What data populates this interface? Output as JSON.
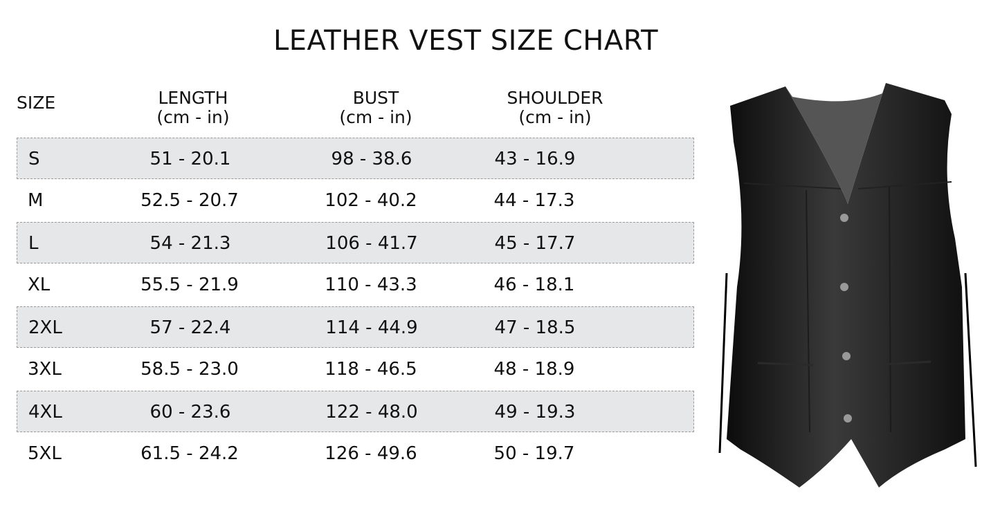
{
  "title": "LEATHER VEST SIZE CHART",
  "headers": [
    {
      "label": "SIZE",
      "unit": ""
    },
    {
      "label": "LENGTH",
      "unit": "(cm - in)"
    },
    {
      "label": "BUST",
      "unit": "(cm - in)"
    },
    {
      "label": "SHOULDER",
      "unit": "(cm - in)"
    }
  ],
  "rows": [
    {
      "size": "S",
      "length": "51 - 20.1",
      "bust": "98 - 38.6",
      "shoulder": "43 - 16.9"
    },
    {
      "size": "M",
      "length": "52.5 - 20.7",
      "bust": "102 - 40.2",
      "shoulder": "44 - 17.3"
    },
    {
      "size": "L",
      "length": "54 - 21.3",
      "bust": "106 - 41.7",
      "shoulder": "45 - 17.7"
    },
    {
      "size": "XL",
      "length": "55.5 - 21.9",
      "bust": "110 - 43.3",
      "shoulder": "46 - 18.1"
    },
    {
      "size": "2XL",
      "length": "57 - 22.4",
      "bust": "114 - 44.9",
      "shoulder": "47 - 18.5"
    },
    {
      "size": "3XL",
      "length": "58.5 - 23.0",
      "bust": "118 - 46.5",
      "shoulder": "48 - 18.9"
    },
    {
      "size": "4XL",
      "length": "60 - 23.6",
      "bust": "122 - 48.0",
      "shoulder": "49 - 19.3"
    },
    {
      "size": "5XL",
      "length": "61.5 - 24.2",
      "bust": "126 - 49.6",
      "shoulder": "50 - 19.7"
    }
  ],
  "colors": {
    "row_shade": "#e6e7e9",
    "text": "#111111"
  },
  "image": "black-leather-vest-photo"
}
